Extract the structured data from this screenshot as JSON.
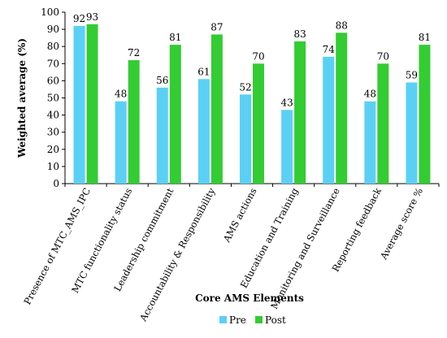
{
  "chart_data": {
    "type": "bar",
    "categories": [
      "Presence of MTC_AMS_IPC",
      "MTC functionality status",
      "Leadership commitment",
      "Accountability & Responsibility",
      "AMS actions",
      "Education and Training",
      "Monitoring and Surveillance",
      "Reporting feedback",
      "Average score %"
    ],
    "series": [
      {
        "name": "Pre",
        "color": "#5bd0f5",
        "values": [
          92,
          48,
          56,
          61,
          52,
          43,
          74,
          48,
          59
        ]
      },
      {
        "name": "Post",
        "color": "#33cc33",
        "values": [
          93,
          72,
          81,
          87,
          70,
          83,
          88,
          70,
          81
        ]
      }
    ],
    "xlabel": "Core AMS Elements",
    "ylabel": "Weighted average (%)",
    "ylim": [
      0,
      100
    ],
    "yticks": [
      0,
      10,
      20,
      30,
      40,
      50,
      60,
      70,
      80,
      90,
      100
    ],
    "grid": false,
    "legend": "bottom"
  }
}
